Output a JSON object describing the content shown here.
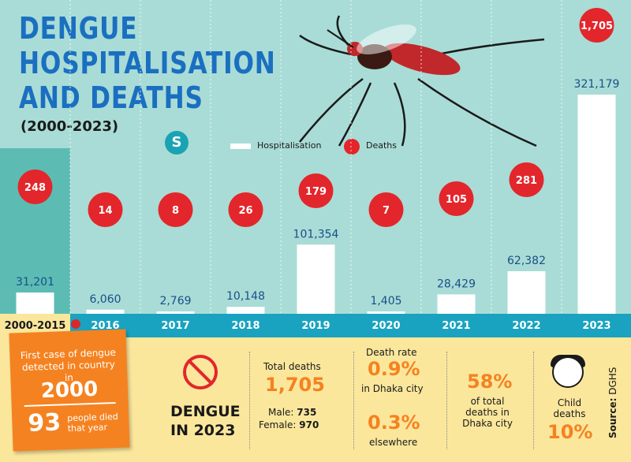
{
  "title_lines": [
    "DENGUE",
    "HOSPITALISATION",
    "AND DEATHS"
  ],
  "years_range": "(2000-2023)",
  "logo_text": "S",
  "legend": {
    "hospitalisation": "Hospitalisation",
    "deaths": "Deaths"
  },
  "colors": {
    "background": "#a9dcd6",
    "first_column": "#5cbcb3",
    "band": "#19a3c0",
    "death_circle": "#e3262b",
    "bar": "#ffffff",
    "value_text": "#1a4f8a",
    "footer": "#fbe79c",
    "accent_orange": "#f58220"
  },
  "chart_data": {
    "type": "bar",
    "categories": [
      "2000-2015",
      "2016",
      "2017",
      "2018",
      "2019",
      "2020",
      "2021",
      "2022",
      "2023"
    ],
    "series": [
      {
        "name": "Hospitalisation",
        "values": [
          31201,
          6060,
          2769,
          10148,
          101354,
          1405,
          28429,
          62382,
          321179
        ],
        "labels": [
          "31,201",
          "6,060",
          "2,769",
          "10,148",
          "101,354",
          "1,405",
          "28,429",
          "62,382",
          "321,179"
        ]
      },
      {
        "name": "Deaths",
        "values": [
          248,
          14,
          8,
          26,
          179,
          7,
          105,
          281,
          1705
        ],
        "labels": [
          "248",
          "14",
          "8",
          "26",
          "179",
          "7",
          "105",
          "281",
          "1,705"
        ]
      }
    ],
    "ylim": [
      0,
      321179
    ]
  },
  "sticky": {
    "text": "First case of dengue detected in country in",
    "year": "2000",
    "count": "93",
    "note": "people died that year"
  },
  "dengue_2023": {
    "line1": "DENGUE",
    "line2": "IN 2023"
  },
  "stats": {
    "total_deaths_label": "Total deaths",
    "total_deaths_value": "1,705",
    "male_label": "Male:",
    "male_value": "735",
    "female_label": "Female:",
    "female_value": "970",
    "death_rate_label": "Death rate",
    "dhaka_rate": "0.9%",
    "dhaka_rate_note": "in Dhaka city",
    "elsewhere_rate": "0.3%",
    "elsewhere_note": "elsewhere",
    "dhaka_share": "58%",
    "dhaka_share_note": [
      "of total",
      "deaths in",
      "Dhaka city"
    ],
    "child_label": [
      "Child",
      "deaths"
    ],
    "child_value": "10%"
  },
  "source": {
    "label": "Source:",
    "name": "DGHS"
  }
}
